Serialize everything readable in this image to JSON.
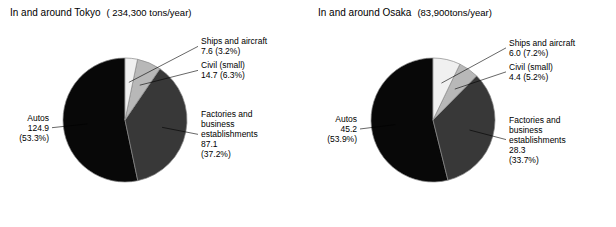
{
  "chart_data": [
    {
      "type": "pie",
      "title": "In and around Tokyo",
      "subtitle": "( 234,300 tons/year)",
      "categories": [
        "Autos\n124.9\n(53.3%)",
        "Factories and\nbusiness\nestablishments\n87.1\n(37.2%)",
        "Civil (small)\n14.7 (6.3%)",
        "Ships and aircraft\n7.6 (3.2%)"
      ],
      "values": [
        124.9,
        87.1,
        14.7,
        7.6
      ],
      "colors": [
        "#080808",
        "#383838",
        "#b8b8b8",
        "#f0f0f0"
      ]
    },
    {
      "type": "pie",
      "title": "In and around Osaka",
      "subtitle": "(83,900tons/year)",
      "categories": [
        "Autos\n45.2\n(53.9%)",
        "Factories and\nbusiness\nestablishments\n28.3\n(33.7%)",
        "Civil (small)\n4.4 (5.2%)",
        "Ships and aircraft\n6.0 (7.2%)"
      ],
      "values": [
        45.2,
        28.3,
        4.4,
        6.0
      ],
      "colors": [
        "#080808",
        "#383838",
        "#b8b8b8",
        "#f0f0f0"
      ]
    }
  ]
}
